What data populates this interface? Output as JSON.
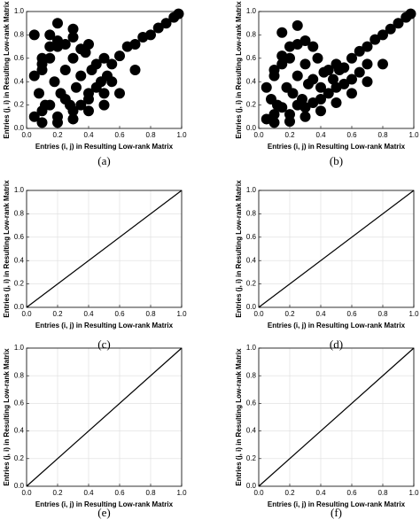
{
  "chart_data": [
    {
      "type": "scatter",
      "caption": "(a)",
      "xlabel": "Entries (i, j) in Resulting Low-rank Matrix",
      "ylabel": "Entries (j, i) in Resulting Low-rank Matrix",
      "x": [
        0.05,
        0.08,
        0.1,
        0.12,
        0.15,
        0.18,
        0.2,
        0.22,
        0.25,
        0.28,
        0.3,
        0.32,
        0.35,
        0.38,
        0.4,
        0.42,
        0.45,
        0.48,
        0.5,
        0.52,
        0.55,
        0.6,
        0.65,
        0.7,
        0.75,
        0.8,
        0.85,
        0.9,
        0.95,
        0.98,
        0.1,
        0.15,
        0.2,
        0.25,
        0.3,
        0.35,
        0.4,
        0.45,
        0.5,
        0.55,
        0.05,
        0.1,
        0.15,
        0.2,
        0.25,
        0.3,
        0.35,
        0.4,
        0.1,
        0.2,
        0.3,
        0.4,
        0.5,
        0.6,
        0.7,
        0.3,
        0.2,
        0.15,
        0.1,
        0.05
      ],
      "values": [
        0.1,
        0.3,
        0.5,
        0.2,
        0.6,
        0.4,
        0.7,
        0.3,
        0.5,
        0.2,
        0.6,
        0.35,
        0.45,
        0.65,
        0.3,
        0.5,
        0.55,
        0.4,
        0.6,
        0.45,
        0.55,
        0.62,
        0.7,
        0.72,
        0.78,
        0.8,
        0.86,
        0.9,
        0.95,
        0.98,
        0.15,
        0.2,
        0.1,
        0.25,
        0.15,
        0.2,
        0.25,
        0.35,
        0.3,
        0.4,
        0.45,
        0.55,
        0.7,
        0.75,
        0.72,
        0.78,
        0.68,
        0.72,
        0.05,
        0.05,
        0.08,
        0.15,
        0.2,
        0.3,
        0.5,
        0.85,
        0.9,
        0.8,
        0.6,
        0.8
      ],
      "color": "#000000",
      "xlim": [
        0,
        1
      ],
      "ylim": [
        0,
        1
      ],
      "xticks": [
        {
          "value": 0,
          "label": "0.0"
        },
        0.2,
        0.4,
        0.6,
        0.8,
        {
          "value": 1,
          "label": "1.0"
        }
      ],
      "yticks": [
        {
          "value": 0,
          "label": "0.0"
        },
        0.2,
        0.4,
        0.6,
        0.8,
        {
          "value": 1,
          "label": "1.0"
        }
      ],
      "grid": false
    },
    {
      "type": "scatter",
      "caption": "(b)",
      "xlabel": "Entries (i, j) in Resulting Low-rank Matrix",
      "ylabel": "Entries (j, i) in Resulting Low-rank Matrix",
      "x": [
        0.05,
        0.08,
        0.1,
        0.12,
        0.15,
        0.18,
        0.2,
        0.22,
        0.25,
        0.28,
        0.3,
        0.32,
        0.35,
        0.38,
        0.4,
        0.42,
        0.45,
        0.48,
        0.5,
        0.52,
        0.55,
        0.6,
        0.65,
        0.7,
        0.75,
        0.8,
        0.85,
        0.9,
        0.95,
        0.98,
        0.1,
        0.15,
        0.2,
        0.25,
        0.3,
        0.35,
        0.4,
        0.45,
        0.5,
        0.55,
        0.6,
        0.65,
        0.7,
        0.05,
        0.1,
        0.15,
        0.2,
        0.25,
        0.3,
        0.35,
        0.1,
        0.2,
        0.3,
        0.4,
        0.5,
        0.6,
        0.7,
        0.8,
        0.25,
        0.15
      ],
      "values": [
        0.08,
        0.25,
        0.45,
        0.2,
        0.55,
        0.35,
        0.6,
        0.3,
        0.45,
        0.25,
        0.55,
        0.38,
        0.42,
        0.6,
        0.35,
        0.48,
        0.5,
        0.42,
        0.55,
        0.5,
        0.52,
        0.6,
        0.66,
        0.7,
        0.76,
        0.8,
        0.85,
        0.9,
        0.95,
        0.98,
        0.12,
        0.18,
        0.12,
        0.2,
        0.18,
        0.22,
        0.25,
        0.3,
        0.35,
        0.38,
        0.42,
        0.48,
        0.55,
        0.35,
        0.5,
        0.62,
        0.7,
        0.72,
        0.75,
        0.7,
        0.05,
        0.06,
        0.1,
        0.15,
        0.22,
        0.3,
        0.4,
        0.55,
        0.88,
        0.82
      ],
      "color": "#000000",
      "xlim": [
        0,
        1
      ],
      "ylim": [
        0,
        1
      ],
      "xticks": [
        {
          "value": 0,
          "label": "0.0"
        },
        0.2,
        0.4,
        0.6,
        0.8,
        {
          "value": 1,
          "label": "1.0"
        }
      ],
      "yticks": [
        {
          "value": 0,
          "label": "0.0"
        },
        0.2,
        0.4,
        0.6,
        0.8,
        {
          "value": 1,
          "label": "1.0"
        }
      ],
      "grid": false
    },
    {
      "type": "line",
      "caption": "(c)",
      "xlabel": "Entries (i, j) in Resulting Low-rank Matrix",
      "ylabel": "Entries (j, i) in Resulting Low-rank Matrix",
      "x": [
        0,
        1
      ],
      "values": [
        0,
        1
      ],
      "color": "#000000",
      "xlim": [
        0,
        1
      ],
      "ylim": [
        0,
        1
      ],
      "xticks": [
        {
          "value": 0,
          "label": "0.0"
        },
        0.2,
        0.4,
        0.6,
        0.8,
        {
          "value": 1,
          "label": "1.0"
        }
      ],
      "yticks": [
        {
          "value": 0,
          "label": "0.0"
        },
        0.2,
        0.4,
        0.6,
        0.8,
        {
          "value": 1,
          "label": "1.0"
        }
      ],
      "grid": true
    },
    {
      "type": "line",
      "caption": "(d)",
      "xlabel": "Entries (i, j) in Resulting Low-rank Matrix",
      "ylabel": "Entries (j, i) in Resulting Low-rank Matrix",
      "x": [
        0,
        1
      ],
      "values": [
        0,
        1
      ],
      "color": "#000000",
      "xlim": [
        0,
        1
      ],
      "ylim": [
        0,
        1
      ],
      "xticks": [
        {
          "value": 0,
          "label": "0.0"
        },
        0.2,
        0.4,
        0.6,
        0.8,
        {
          "value": 1,
          "label": "1.0"
        }
      ],
      "yticks": [
        {
          "value": 0,
          "label": "0.0"
        },
        0.2,
        0.4,
        0.6,
        0.8,
        {
          "value": 1,
          "label": "1.0"
        }
      ],
      "grid": true
    },
    {
      "type": "line",
      "caption": "(e)",
      "xlabel": "Entries (i, j) in Resulting Low-rank Matrix",
      "ylabel": "Entries (j, i) in Resulting Low-rank Matrix",
      "x": [
        0,
        1
      ],
      "values": [
        0,
        1
      ],
      "color": "#000000",
      "xlim": [
        0,
        1
      ],
      "ylim": [
        0,
        1
      ],
      "xticks": [
        {
          "value": 0,
          "label": "0.0"
        },
        0.2,
        0.4,
        0.6,
        0.8,
        {
          "value": 1,
          "label": "1.0"
        }
      ],
      "yticks": [
        {
          "value": 0,
          "label": "0.0"
        },
        0.2,
        0.4,
        0.6,
        0.8,
        {
          "value": 1,
          "label": "1.0"
        }
      ],
      "grid": true
    },
    {
      "type": "line",
      "caption": "(f)",
      "xlabel": "Entries (i, j) in Resulting Low-rank Matrix",
      "ylabel": "Entries (j, i) in Resulting Low-rank Matrix",
      "x": [
        0,
        1
      ],
      "values": [
        0,
        1
      ],
      "color": "#000000",
      "xlim": [
        0,
        1
      ],
      "ylim": [
        0,
        1
      ],
      "xticks": [
        {
          "value": 0,
          "label": "0.0"
        },
        0.2,
        0.4,
        0.6,
        0.8,
        {
          "value": 1,
          "label": "1.0"
        }
      ],
      "yticks": [
        {
          "value": 0,
          "label": "0.0"
        },
        0.2,
        0.4,
        0.6,
        0.8,
        {
          "value": 1,
          "label": "1.0"
        }
      ],
      "grid": true
    }
  ]
}
